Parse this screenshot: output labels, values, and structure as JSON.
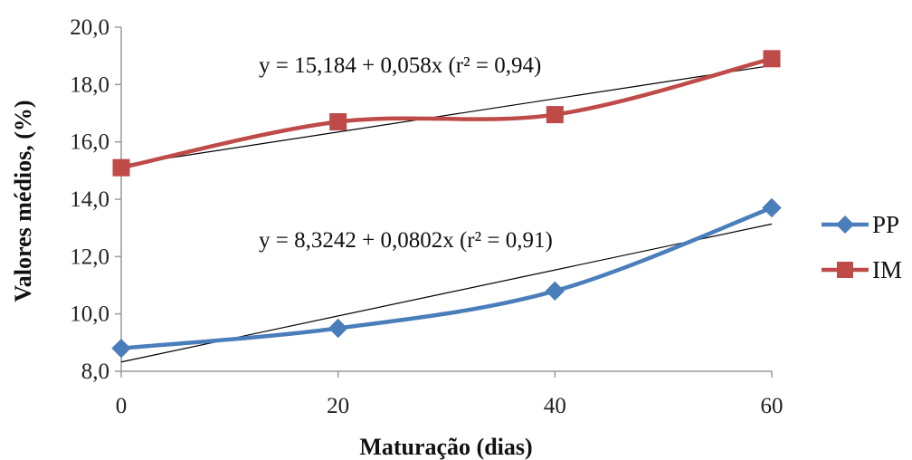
{
  "chart_data": {
    "type": "line",
    "xlabel": "Maturação (dias)",
    "ylabel": "Valores médios, (%)",
    "x": [
      0,
      20,
      40,
      60
    ],
    "x_tick_labels": [
      "0",
      "20",
      "40",
      "60"
    ],
    "xlim": [
      0,
      60
    ],
    "ylim": [
      8.0,
      20.0
    ],
    "y_ticks": [
      8.0,
      10.0,
      12.0,
      14.0,
      16.0,
      18.0,
      20.0
    ],
    "y_tick_labels": [
      "8,0",
      "10,0",
      "12,0",
      "14,0",
      "16,0",
      "18,0",
      "20,0"
    ],
    "grid": false,
    "legend_position": "right",
    "series": [
      {
        "name": "PP",
        "values": [
          8.8,
          9.5,
          10.8,
          13.7
        ],
        "color": "#4a7ebb",
        "marker": "diamond",
        "trend": {
          "intercept": 8.3242,
          "slope": 0.0802
        }
      },
      {
        "name": "IM",
        "values": [
          15.1,
          16.7,
          16.95,
          18.9
        ],
        "color": "#be4b48",
        "marker": "square",
        "trend": {
          "intercept": 15.184,
          "slope": 0.058
        }
      }
    ],
    "annotations": [
      {
        "series": "IM",
        "text": "y = 15,184 + 0,058x (r² = 0,94)"
      },
      {
        "series": "PP",
        "text": "y = 8,3242 + 0,0802x (r² = 0,91)"
      }
    ]
  }
}
